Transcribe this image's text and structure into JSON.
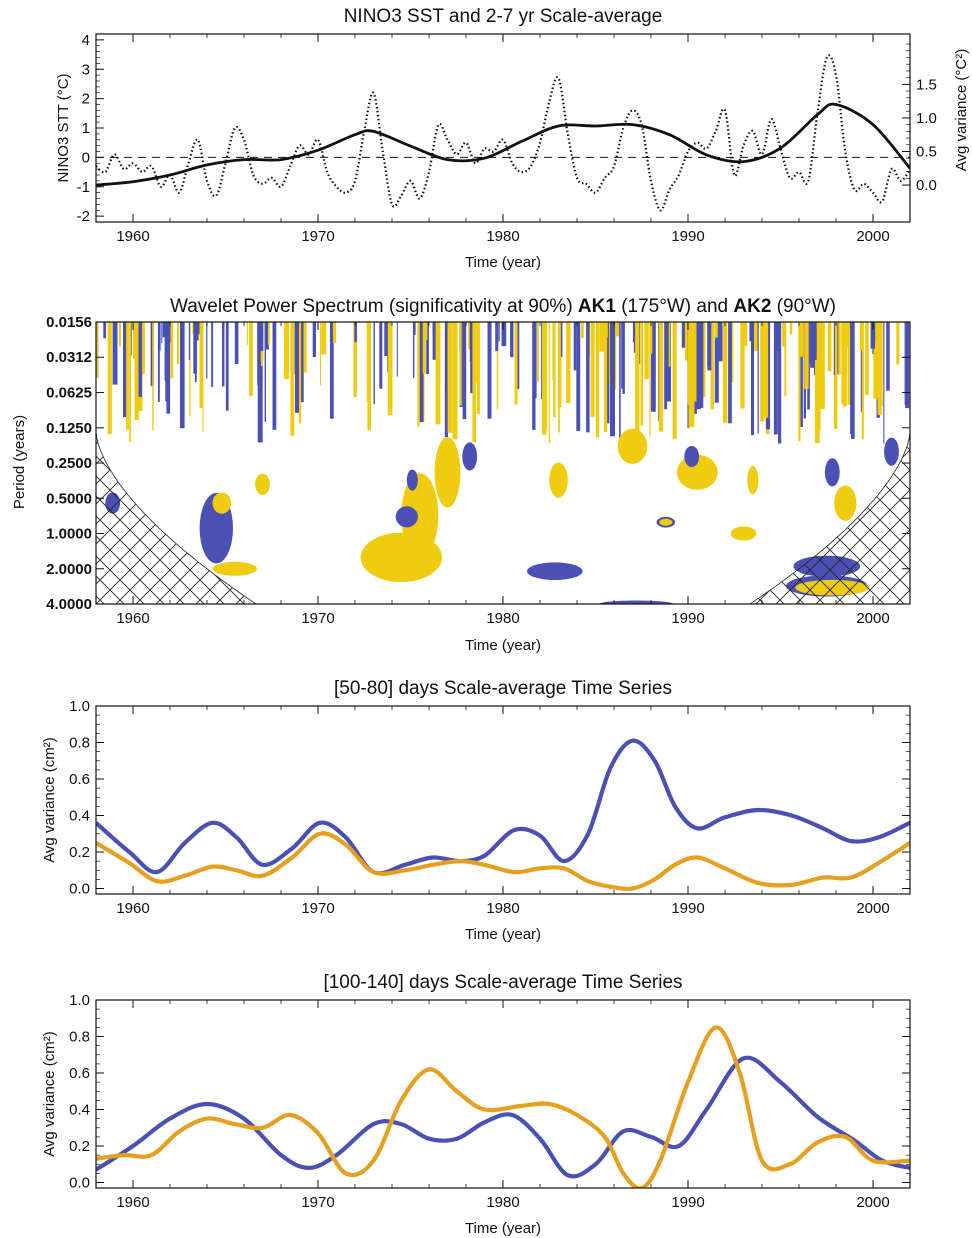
{
  "figure": {
    "colors": {
      "blue": "#4a50b4",
      "orange": "#e6a020",
      "yellow": "#f0cc10",
      "black": "#111111"
    }
  },
  "chart_data": [
    {
      "id": "nino3",
      "type": "line",
      "title": "NINO3 SST and 2-7 yr Scale-average",
      "xlabel": "Time (year)",
      "ylabel": "NINO3 STT  (°C)",
      "ylabel_right": "Avg variance (°C²)",
      "xlim": [
        1958,
        2002
      ],
      "ylim": [
        -2.2,
        4.2
      ],
      "ylim_right": [
        -0.55,
        2.25
      ],
      "x_ticks": [
        1960,
        1970,
        1980,
        1990,
        2000
      ],
      "y_ticks": [
        -2,
        -1,
        0,
        1,
        2,
        3,
        4
      ],
      "y_ticks_right": [
        "0.0",
        "0.5",
        "1.0",
        "1.5"
      ],
      "zero_line": "dashed",
      "series": [
        {
          "style": "dotted",
          "axis": "left",
          "x": [
            1958,
            1958.5,
            1959,
            1959.5,
            1960,
            1960.5,
            1961,
            1961.5,
            1962,
            1962.5,
            1963,
            1963.5,
            1964,
            1964.5,
            1965,
            1965.5,
            1966,
            1966.5,
            1967,
            1967.5,
            1968,
            1968.5,
            1969,
            1969.5,
            1970,
            1970.5,
            1971,
            1971.5,
            1972,
            1972.5,
            1973,
            1973.5,
            1974,
            1974.5,
            1975,
            1975.5,
            1976,
            1976.5,
            1977,
            1977.5,
            1978,
            1978.5,
            1979,
            1979.5,
            1980,
            1980.5,
            1981,
            1981.5,
            1982,
            1982.5,
            1983,
            1983.5,
            1984,
            1984.5,
            1985,
            1985.5,
            1986,
            1986.5,
            1987,
            1987.5,
            1988,
            1988.5,
            1989,
            1989.5,
            1990,
            1990.5,
            1991,
            1991.5,
            1992,
            1992.5,
            1993,
            1993.5,
            1994,
            1994.5,
            1995,
            1995.5,
            1996,
            1996.5,
            1997,
            1997.5,
            1998,
            1998.5,
            1999,
            1999.5,
            2000,
            2000.5,
            2001,
            2001.5,
            2002
          ],
          "y": [
            -0.3,
            -0.5,
            0.1,
            -0.4,
            -0.2,
            -0.5,
            -0.3,
            -1.0,
            -0.6,
            -1.2,
            -0.2,
            0.6,
            -0.8,
            -1.3,
            -0.2,
            1.0,
            0.6,
            -0.6,
            -0.9,
            -0.7,
            -1.0,
            -0.3,
            0.4,
            0.1,
            0.6,
            -0.5,
            -1.0,
            -1.2,
            -0.8,
            0.9,
            2.2,
            0.2,
            -1.6,
            -1.3,
            -0.8,
            -1.4,
            -0.5,
            1.1,
            0.6,
            0.1,
            0.5,
            -0.2,
            0.3,
            0.2,
            0.6,
            -0.2,
            -0.5,
            -0.3,
            0.5,
            1.9,
            2.7,
            0.8,
            -0.7,
            -0.9,
            -1.2,
            -0.7,
            -0.3,
            1.0,
            1.6,
            1.1,
            -0.8,
            -1.8,
            -1.1,
            -0.6,
            0.2,
            0.5,
            0.3,
            0.9,
            1.6,
            -0.6,
            0.4,
            0.9,
            0.1,
            1.3,
            0.3,
            -0.7,
            -0.5,
            -0.8,
            1.5,
            3.4,
            2.8,
            0.2,
            -1.1,
            -0.9,
            -1.2,
            -1.5,
            -0.4,
            -0.8,
            -0.4
          ]
        },
        {
          "style": "solid",
          "axis": "right",
          "x": [
            1958,
            1960,
            1962,
            1964,
            1966,
            1968,
            1970,
            1972,
            1973,
            1975,
            1977,
            1979,
            1981,
            1983,
            1985,
            1987,
            1989,
            1991,
            1993,
            1995,
            1997,
            1998,
            2000,
            2002
          ],
          "y": [
            0.0,
            0.05,
            0.15,
            0.3,
            0.38,
            0.38,
            0.52,
            0.75,
            0.8,
            0.58,
            0.38,
            0.4,
            0.65,
            0.88,
            0.88,
            0.9,
            0.75,
            0.45,
            0.35,
            0.55,
            1.05,
            1.2,
            0.9,
            0.25
          ]
        }
      ]
    },
    {
      "id": "wavelet",
      "type": "heatmap",
      "title_parts": [
        "Wavelet Power Spectrum (significativity at 90%) ",
        "AK1",
        " (175°W) and ",
        "AK2",
        " (90°W)"
      ],
      "xlabel": "Time (year)",
      "ylabel": "Period (years)",
      "xlim": [
        1958,
        2002
      ],
      "period_range": [
        0.0156,
        4.0
      ],
      "x_ticks": [
        1960,
        1970,
        1980,
        1990,
        2000
      ],
      "y_ticks": [
        "0.0156",
        "0.0312",
        "0.0625",
        "0.1250",
        "0.2500",
        "0.5000",
        "1.0000",
        "2.0000",
        "4.0000"
      ],
      "cone_of_influence": "hatched",
      "regions": [
        {
          "color": "blue",
          "cx": 1964.5,
          "cp": 0.9,
          "rx": 0.9,
          "rp": 1.0
        },
        {
          "color": "yellow",
          "cx": 1964.8,
          "cp": 0.55,
          "rx": 0.5,
          "rp": 0.3
        },
        {
          "color": "yellow",
          "cx": 1965.5,
          "cp": 2.0,
          "rx": 1.2,
          "rp": 0.2
        },
        {
          "color": "blue",
          "cx": 1958.9,
          "cp": 0.55,
          "rx": 0.4,
          "rp": 0.3
        },
        {
          "color": "yellow",
          "cx": 1967.0,
          "cp": 0.38,
          "rx": 0.4,
          "rp": 0.3
        },
        {
          "color": "yellow",
          "cx": 1974.5,
          "cp": 1.6,
          "rx": 2.2,
          "rp": 0.7
        },
        {
          "color": "yellow",
          "cx": 1975.5,
          "cp": 0.7,
          "rx": 1.0,
          "rp": 1.2
        },
        {
          "color": "blue",
          "cx": 1974.8,
          "cp": 0.72,
          "rx": 0.6,
          "rp": 0.3
        },
        {
          "color": "blue",
          "cx": 1975.1,
          "cp": 0.35,
          "rx": 0.3,
          "rp": 0.3
        },
        {
          "color": "yellow",
          "cx": 1977.0,
          "cp": 0.3,
          "rx": 0.7,
          "rp": 1.0
        },
        {
          "color": "blue",
          "cx": 1978.2,
          "cp": 0.22,
          "rx": 0.4,
          "rp": 0.4
        },
        {
          "color": "blue",
          "cx": 1982.8,
          "cp": 2.1,
          "rx": 1.5,
          "rp": 0.25
        },
        {
          "color": "yellow",
          "cx": 1983.0,
          "cp": 0.35,
          "rx": 0.5,
          "rp": 0.5
        },
        {
          "color": "blue",
          "cx": 1987.2,
          "cp": 4.0,
          "rx": 2.0,
          "rp": 0.1
        },
        {
          "color": "yellow",
          "cx": 1987.0,
          "cp": 0.18,
          "rx": 0.8,
          "rp": 0.5
        },
        {
          "color": "blue",
          "cx": 1988.8,
          "cp": 0.8,
          "rx": 0.5,
          "rp": 0.15
        },
        {
          "color": "yellow",
          "cx": 1988.8,
          "cp": 0.8,
          "rx": 0.35,
          "rp": 0.1
        },
        {
          "color": "yellow",
          "cx": 1990.5,
          "cp": 0.3,
          "rx": 1.1,
          "rp": 0.5
        },
        {
          "color": "blue",
          "cx": 1990.2,
          "cp": 0.22,
          "rx": 0.4,
          "rp": 0.3
        },
        {
          "color": "yellow",
          "cx": 1993.0,
          "cp": 1.0,
          "rx": 0.7,
          "rp": 0.2
        },
        {
          "color": "yellow",
          "cx": 1993.5,
          "cp": 0.35,
          "rx": 0.3,
          "rp": 0.4
        },
        {
          "color": "blue",
          "cx": 1997.5,
          "cp": 1.9,
          "rx": 1.8,
          "rp": 0.3
        },
        {
          "color": "blue",
          "cx": 1997.5,
          "cp": 2.8,
          "rx": 2.2,
          "rp": 0.3
        },
        {
          "color": "yellow",
          "cx": 1997.8,
          "cp": 2.9,
          "rx": 2.0,
          "rp": 0.22
        },
        {
          "color": "blue",
          "cx": 1997.8,
          "cp": 0.3,
          "rx": 0.4,
          "rp": 0.4
        },
        {
          "color": "yellow",
          "cx": 1998.5,
          "cp": 0.55,
          "rx": 0.6,
          "rp": 0.5
        },
        {
          "color": "blue",
          "cx": 2001.0,
          "cp": 0.2,
          "rx": 0.4,
          "rp": 0.4
        }
      ]
    },
    {
      "id": "band_50_80",
      "type": "line",
      "title": "[50-80] days Scale-average Time Series",
      "xlabel": "Time (year)",
      "ylabel": "Avg variance (cm²)",
      "xlim": [
        1958,
        2002
      ],
      "ylim": [
        -0.03,
        1.0
      ],
      "x_ticks": [
        1960,
        1970,
        1980,
        1990,
        2000
      ],
      "y_ticks": [
        "0.0",
        "0.2",
        "0.4",
        "0.6",
        "0.8",
        "1.0"
      ],
      "series": [
        {
          "color": "blue",
          "x": [
            1958,
            1959.8,
            1961.3,
            1962.8,
            1964.3,
            1965.6,
            1967.0,
            1968.6,
            1970.1,
            1971.5,
            1973.0,
            1974.7,
            1976.2,
            1977.7,
            1979.0,
            1980.6,
            1982.0,
            1983.3,
            1984.6,
            1985.8,
            1987.0,
            1988.2,
            1989.3,
            1990.5,
            1992.0,
            1993.8,
            1995.6,
            1997.3,
            1998.8,
            2000.3,
            2002
          ],
          "y": [
            0.36,
            0.2,
            0.09,
            0.25,
            0.36,
            0.28,
            0.13,
            0.22,
            0.36,
            0.28,
            0.09,
            0.13,
            0.17,
            0.15,
            0.18,
            0.32,
            0.29,
            0.15,
            0.3,
            0.66,
            0.81,
            0.7,
            0.45,
            0.33,
            0.39,
            0.43,
            0.4,
            0.33,
            0.26,
            0.28,
            0.36
          ]
        },
        {
          "color": "orange",
          "x": [
            1958,
            1959.8,
            1961.3,
            1962.8,
            1964.3,
            1965.6,
            1967.0,
            1968.6,
            1970.1,
            1971.5,
            1973.0,
            1974.7,
            1976.2,
            1977.7,
            1979.0,
            1980.6,
            1982.0,
            1983.3,
            1984.6,
            1985.8,
            1987.0,
            1988.2,
            1989.3,
            1990.5,
            1992.0,
            1993.8,
            1995.6,
            1997.3,
            1998.8,
            2000.3,
            2002
          ],
          "y": [
            0.25,
            0.14,
            0.04,
            0.07,
            0.12,
            0.1,
            0.07,
            0.17,
            0.3,
            0.24,
            0.09,
            0.1,
            0.13,
            0.15,
            0.13,
            0.09,
            0.11,
            0.11,
            0.04,
            0.01,
            0.0,
            0.05,
            0.13,
            0.17,
            0.11,
            0.03,
            0.02,
            0.06,
            0.06,
            0.14,
            0.25
          ]
        }
      ]
    },
    {
      "id": "band_100_140",
      "type": "line",
      "title": "[100-140] days Scale-average Time Series",
      "xlabel": "Time (year)",
      "ylabel": "Avg variance (cm²)",
      "xlim": [
        1958,
        2002
      ],
      "ylim": [
        -0.03,
        1.0
      ],
      "x_ticks": [
        1960,
        1970,
        1980,
        1990,
        2000
      ],
      "y_ticks": [
        "0.0",
        "0.2",
        "0.4",
        "0.6",
        "0.8",
        "1.0"
      ],
      "series": [
        {
          "color": "blue",
          "x": [
            1958,
            1960,
            1962,
            1964,
            1966,
            1968,
            1969.5,
            1971,
            1973,
            1974.5,
            1976,
            1977.5,
            1979,
            1980.5,
            1982,
            1983.5,
            1985,
            1986.5,
            1988,
            1989.5,
            1991,
            1993,
            1995,
            1997,
            1999,
            2000.5,
            2002
          ],
          "y": [
            0.07,
            0.2,
            0.35,
            0.43,
            0.35,
            0.15,
            0.08,
            0.15,
            0.32,
            0.32,
            0.24,
            0.24,
            0.33,
            0.37,
            0.24,
            0.04,
            0.1,
            0.28,
            0.25,
            0.2,
            0.4,
            0.68,
            0.55,
            0.36,
            0.23,
            0.12,
            0.08
          ]
        },
        {
          "color": "orange",
          "x": [
            1958,
            1959.5,
            1961,
            1962.5,
            1964,
            1965.5,
            1967,
            1968.5,
            1970,
            1971.5,
            1973,
            1974.5,
            1976,
            1977.5,
            1979,
            1981,
            1982.5,
            1984,
            1985.5,
            1986.5,
            1987.5,
            1988.5,
            1990,
            1991.5,
            1992.8,
            1994,
            1995.5,
            1997,
            1998.5,
            2000,
            2002
          ],
          "y": [
            0.13,
            0.15,
            0.15,
            0.28,
            0.35,
            0.32,
            0.3,
            0.37,
            0.27,
            0.05,
            0.12,
            0.45,
            0.62,
            0.5,
            0.4,
            0.42,
            0.43,
            0.37,
            0.25,
            0.05,
            -0.03,
            0.12,
            0.55,
            0.85,
            0.6,
            0.12,
            0.1,
            0.22,
            0.25,
            0.12,
            0.12
          ]
        }
      ]
    }
  ]
}
